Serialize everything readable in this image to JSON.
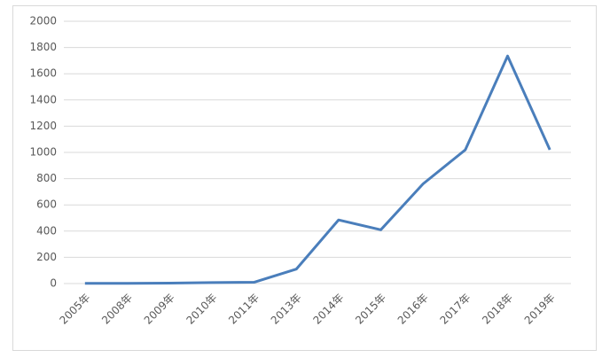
{
  "chart_data": {
    "type": "line",
    "categories": [
      "2005年",
      "2008年",
      "2009年",
      "2010年",
      "2011年",
      "2013年",
      "2014年",
      "2015年",
      "2016年",
      "2017年",
      "2018年",
      "2019年"
    ],
    "series": [
      {
        "color": "#4a7ebb",
        "values": [
          2,
          2,
          3,
          8,
          10,
          110,
          485,
          410,
          760,
          1020,
          1735,
          1020
        ]
      }
    ],
    "ylim": [
      0,
      2000
    ],
    "yticks": [
      0,
      200,
      400,
      600,
      800,
      1000,
      1200,
      1400,
      1600,
      1800,
      2000
    ],
    "grid": true
  }
}
